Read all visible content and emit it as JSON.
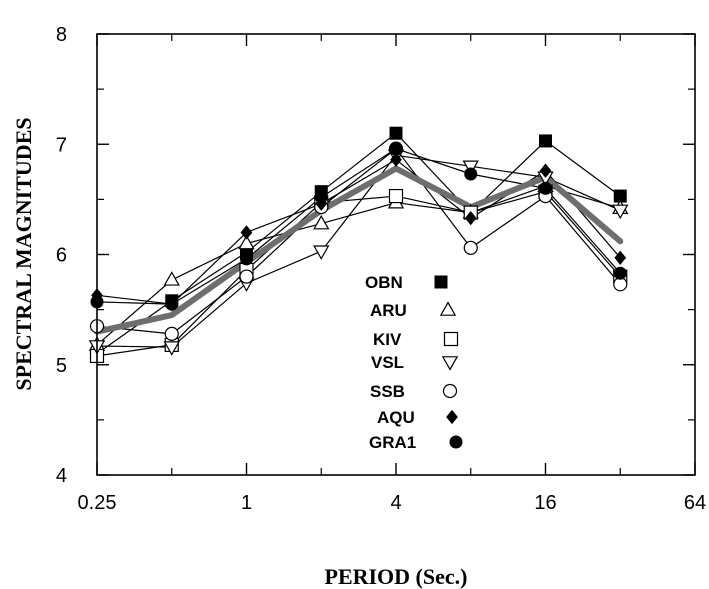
{
  "chart_data": {
    "type": "line",
    "title": "",
    "xlabel": "PERIOD (Sec.)",
    "ylabel": "SPECTRAL MAGNITUDES",
    "x_scale": "log2",
    "xlim": [
      0.25,
      64
    ],
    "ylim": [
      4,
      8
    ],
    "x_ticks": [
      0.25,
      1,
      4,
      16,
      64
    ],
    "x_tick_labels": [
      "0.25",
      "1",
      "4",
      "16",
      "64"
    ],
    "y_ticks": [
      4,
      5,
      6,
      7,
      8
    ],
    "y_tick_labels": [
      "4",
      "5",
      "6",
      "7",
      "8"
    ],
    "grid": false,
    "legend_position": "center",
    "x": [
      0.25,
      0.5,
      1,
      2,
      4,
      8,
      16,
      32
    ],
    "series": [
      {
        "name": "OBN",
        "marker": "filled-square",
        "values": [
          5.1,
          5.58,
          6.02,
          6.57,
          7.1,
          6.38,
          7.03,
          6.53
        ]
      },
      {
        "name": "ARU",
        "marker": "open-triangle",
        "values": [
          5.18,
          5.77,
          6.1,
          6.28,
          6.47,
          6.38,
          6.62,
          6.42
        ]
      },
      {
        "name": "KIV",
        "marker": "open-square",
        "values": [
          5.08,
          5.18,
          5.86,
          6.47,
          6.53,
          6.38,
          6.57,
          5.8
        ]
      },
      {
        "name": "VSL",
        "marker": "open-triangle-down",
        "values": [
          5.17,
          5.16,
          5.74,
          6.03,
          6.9,
          6.8,
          6.7,
          6.4
        ]
      },
      {
        "name": "SSB",
        "marker": "open-circle",
        "values": [
          5.35,
          5.28,
          5.8,
          6.43,
          6.96,
          6.06,
          6.53,
          5.73
        ]
      },
      {
        "name": "AQU",
        "marker": "filled-diamond",
        "values": [
          5.63,
          5.55,
          6.2,
          6.46,
          6.86,
          6.33,
          6.76,
          5.97
        ]
      },
      {
        "name": "GRA1",
        "marker": "filled-circle",
        "values": [
          5.57,
          5.55,
          5.96,
          6.52,
          6.96,
          6.73,
          6.6,
          5.83
        ]
      },
      {
        "name": "",
        "marker": "none",
        "style": "thick-gray-line",
        "values": [
          5.3,
          5.45,
          5.93,
          6.4,
          6.78,
          6.43,
          6.7,
          6.12
        ]
      }
    ],
    "colors": {
      "series": "#000000",
      "mean_line": "#6e6e6e"
    }
  }
}
